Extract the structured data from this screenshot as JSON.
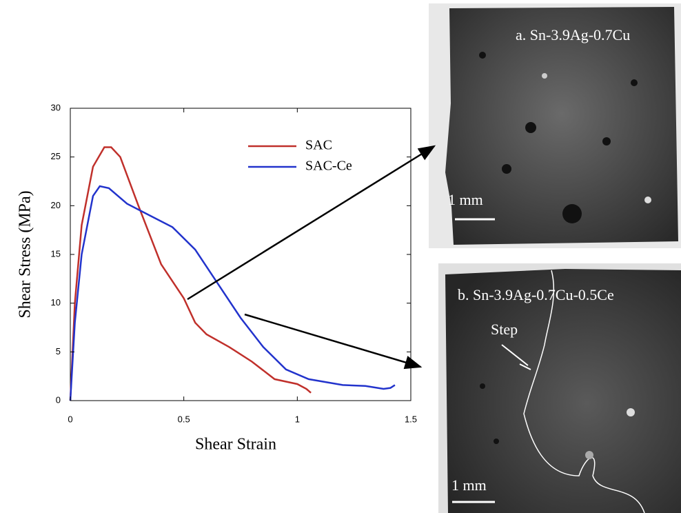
{
  "chart_data": {
    "type": "line",
    "x_label": "Shear Strain",
    "y_label": "Shear Stress (MPa)",
    "xlim": [
      0,
      1.5
    ],
    "ylim": [
      0,
      30
    ],
    "xticks": [
      0,
      0.5,
      1,
      1.5
    ],
    "yticks": [
      0,
      5,
      10,
      15,
      20,
      25,
      30
    ],
    "legend": "upper right",
    "series": [
      {
        "name": "SAC",
        "color": "#c0302b",
        "x": [
          0,
          0.02,
          0.05,
          0.1,
          0.15,
          0.18,
          0.22,
          0.3,
          0.4,
          0.5,
          0.55,
          0.6,
          0.7,
          0.8,
          0.9,
          1.0,
          1.04,
          1.06
        ],
        "values": [
          0,
          10,
          18,
          24,
          26,
          26,
          25,
          20,
          14,
          10.5,
          8,
          6.8,
          5.5,
          4,
          2.2,
          1.7,
          1.2,
          0.8
        ]
      },
      {
        "name": "SAC-Ce",
        "color": "#2233cc",
        "x": [
          0,
          0.02,
          0.05,
          0.1,
          0.13,
          0.17,
          0.25,
          0.35,
          0.45,
          0.55,
          0.65,
          0.75,
          0.85,
          0.95,
          1.05,
          1.2,
          1.3,
          1.38,
          1.41,
          1.43
        ],
        "values": [
          0,
          8,
          15,
          21,
          22,
          21.8,
          20.2,
          19,
          17.8,
          15.5,
          12,
          8.5,
          5.5,
          3.2,
          2.2,
          1.6,
          1.5,
          1.2,
          1.3,
          1.6
        ]
      }
    ],
    "panels": [
      {
        "label": "a. Sn-3.9Ag-0.7Cu",
        "scale_bar": "1 mm"
      },
      {
        "label": "b. Sn-3.9Ag-0.7Cu-0.5Ce",
        "scale_bar": "1 mm",
        "note": "Step"
      }
    ]
  }
}
